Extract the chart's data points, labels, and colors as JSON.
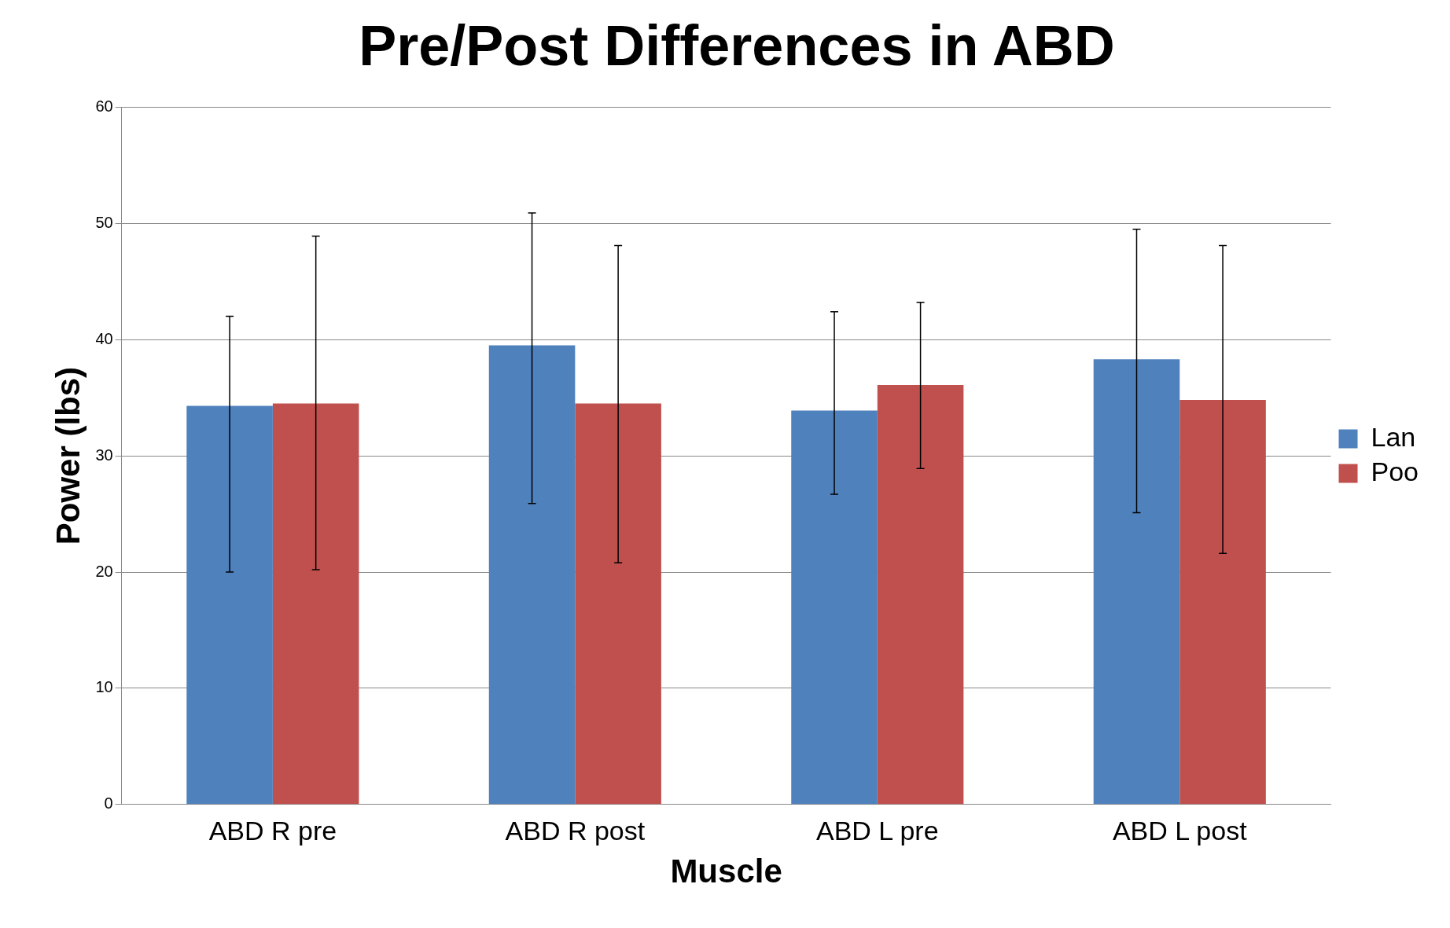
{
  "chart_data": {
    "type": "bar",
    "title": "Pre/Post Differences in ABD",
    "xlabel": "Muscle",
    "ylabel": "Power (lbs)",
    "categories": [
      "ABD R pre",
      "ABD R post",
      "ABD L pre",
      "ABD L post"
    ],
    "series": [
      {
        "name": "Lan",
        "color": "#4f81bd",
        "values": [
          34.3,
          39.5,
          33.9,
          38.3
        ],
        "errors": [
          [
            20,
            42
          ],
          [
            25.9,
            50.9
          ],
          [
            26.7,
            42.4
          ],
          [
            25.1,
            49.5
          ]
        ]
      },
      {
        "name": "Poo",
        "color": "#c0504d",
        "values": [
          34.5,
          34.5,
          36.1,
          34.8
        ],
        "errors": [
          [
            20.2,
            48.9
          ],
          [
            20.8,
            48.1
          ],
          [
            28.9,
            43.2
          ],
          [
            21.6,
            48.1
          ]
        ]
      }
    ],
    "ylim": [
      0,
      60
    ],
    "yticks": [
      0,
      10,
      20,
      30,
      40,
      50,
      60
    ],
    "grid": "y",
    "legend": "right"
  }
}
